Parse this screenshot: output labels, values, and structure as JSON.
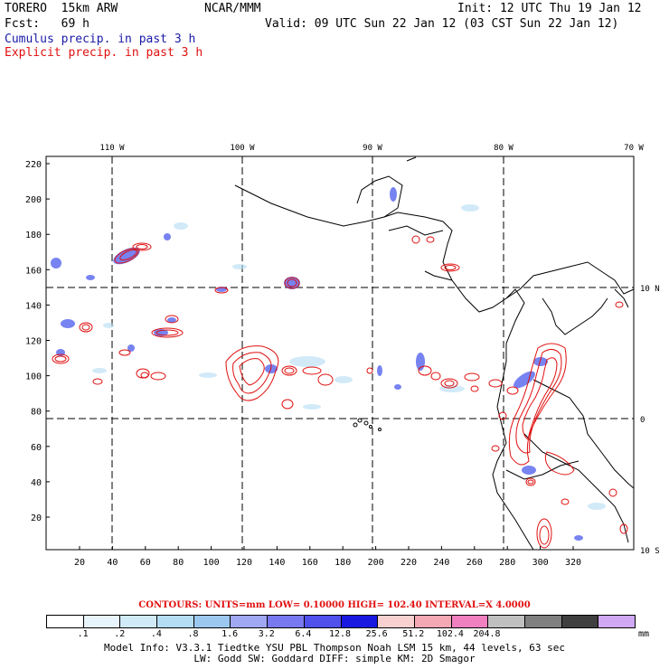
{
  "header": {
    "model": "TORERO  15km ARW",
    "org": "NCAR/MMM",
    "init": "Init: 12 UTC Thu 19 Jan 12",
    "fcst": "Fcst:   69 h",
    "valid": "Valid: 09 UTC Sun 22 Jan 12 (03 CST Sun 22 Jan 12)",
    "line_blue": "Cumulus precip. in past 3 h",
    "line_red": "Explicit precip. in past 3 h"
  },
  "map": {
    "lon_labels": [
      "110 W",
      "100 W",
      "90 W",
      "80 W",
      "70 W"
    ],
    "lat_labels": [
      "10 N",
      "0",
      "10 S"
    ],
    "y_ticks": [
      "220",
      "200",
      "180",
      "160",
      "140",
      "120",
      "100",
      "80",
      "60",
      "40",
      "20"
    ],
    "x_ticks": [
      "20",
      "40",
      "60",
      "80",
      "100",
      "120",
      "140",
      "160",
      "180",
      "200",
      "220",
      "240",
      "260",
      "280",
      "300",
      "320"
    ]
  },
  "contours": {
    "text": "CONTOURS:  UNITS=mm  LOW= 0.10000       HIGH=  102.40      INTERVAL=X  4.0000"
  },
  "legend": {
    "colors": [
      "#ffffff",
      "#e8f4fc",
      "#d0eaf8",
      "#b4dcf4",
      "#9cc8f0",
      "#a0a8f4",
      "#7878f0",
      "#5050ec",
      "#1818e0",
      "#f8d0d0",
      "#f4a8b4",
      "#f080c0",
      "#c0c0c0",
      "#808080",
      "#404040",
      "#d0a8f4"
    ],
    "labels": [
      ".1",
      ".2",
      ".4",
      ".8",
      "1.6",
      "3.2",
      "6.4",
      "12.8",
      "25.6",
      "51.2",
      "102.4",
      "204.8"
    ],
    "unit": "mm"
  },
  "footer": {
    "line1": "Model Info: V3.3.1    Tiedtke YSU PBL   Thompson     Noah LSM  15 km,   44 levels,   63 sec",
    "line2": "LW: Godd SW: Goddard DIFF: simple KM: 2D Smagor"
  }
}
